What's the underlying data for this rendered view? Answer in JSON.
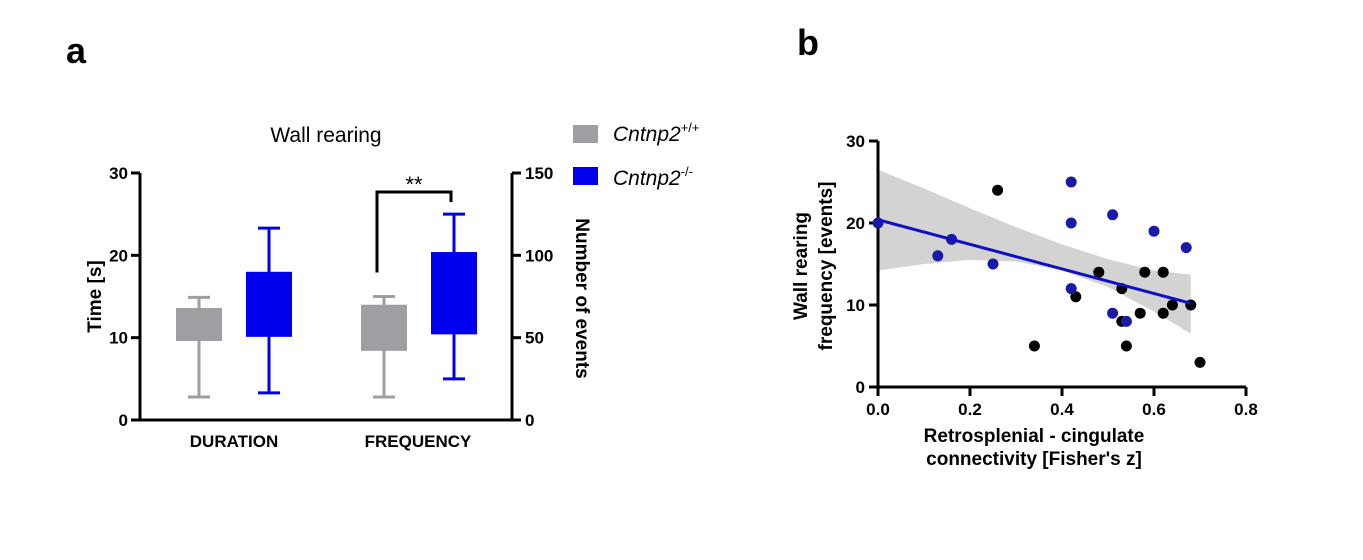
{
  "colors": {
    "wildtype": "#9e9ea3",
    "knockout": "#0000ee",
    "scatter_wildtype": "#000000",
    "scatter_knockout": "#1a1aa6",
    "fit_line": "#1010c0",
    "ci_band": "#d3d3d3",
    "axis": "#000000"
  },
  "panel_a": {
    "letter": "a",
    "legend": [
      {
        "gene": "Cntnp2",
        "sup": "+/+"
      },
      {
        "gene": "Cntnp2",
        "sup": "-/-"
      }
    ]
  },
  "panel_b": {
    "letter": "b"
  },
  "chart_data": [
    {
      "type": "box",
      "title": "Wall rearing",
      "categories": [
        "DURATION",
        "FREQUENCY"
      ],
      "ylabel": "Time [s]",
      "ylim": [
        0,
        30
      ],
      "yticks": [
        "0",
        "10",
        "20",
        "30"
      ],
      "y2label": "Number of events",
      "y2lim": [
        0,
        150
      ],
      "y2ticks": [
        "0",
        "50",
        "100",
        "150"
      ],
      "significance": {
        "label": "**",
        "between": [
          "Cntnp2+/+",
          "Cntnp2-/-"
        ],
        "category": "FREQUENCY"
      },
      "series": [
        {
          "name": "Cntnp2+/+",
          "boxes": [
            {
              "category": "DURATION",
              "axis": "left",
              "min": 2.8,
              "q1": 9.6,
              "median": 13.3,
              "q3": 13.6,
              "max": 14.9
            },
            {
              "category": "FREQUENCY",
              "axis": "right",
              "min": 14,
              "q1": 42,
              "median": 68,
              "q3": 70,
              "max": 75
            }
          ]
        },
        {
          "name": "Cntnp2-/-",
          "boxes": [
            {
              "category": "DURATION",
              "axis": "left",
              "min": 3.3,
              "q1": 10.1,
              "median": 17.5,
              "q3": 18.0,
              "max": 23.3
            },
            {
              "category": "FREQUENCY",
              "axis": "right",
              "min": 25,
              "q1": 52,
              "median": 100,
              "q3": 102,
              "max": 125
            }
          ]
        }
      ]
    },
    {
      "type": "scatter",
      "title": "",
      "xlabel": [
        "Retrosplenial - cingulate",
        "connectivity [Fisher's z]"
      ],
      "ylabel": [
        "Wall rearing",
        "frequency [events]"
      ],
      "xlim": [
        0,
        0.8
      ],
      "ylim": [
        0,
        30
      ],
      "xticks": [
        "0.0",
        "0.2",
        "0.4",
        "0.6",
        "0.8"
      ],
      "yticks": [
        "0",
        "10",
        "20",
        "30"
      ],
      "series": [
        {
          "name": "Cntnp2+/+",
          "points": [
            [
              0.26,
              24
            ],
            [
              0.34,
              5
            ],
            [
              0.43,
              11
            ],
            [
              0.48,
              14
            ],
            [
              0.53,
              12
            ],
            [
              0.53,
              8
            ],
            [
              0.54,
              5
            ],
            [
              0.57,
              9
            ],
            [
              0.58,
              14
            ],
            [
              0.62,
              9
            ],
            [
              0.62,
              14
            ],
            [
              0.64,
              10
            ],
            [
              0.68,
              10
            ],
            [
              0.7,
              3
            ]
          ]
        },
        {
          "name": "Cntnp2-/-",
          "points": [
            [
              0.0,
              20
            ],
            [
              0.13,
              16
            ],
            [
              0.16,
              18
            ],
            [
              0.25,
              15
            ],
            [
              0.42,
              25
            ],
            [
              0.42,
              20
            ],
            [
              0.42,
              12
            ],
            [
              0.51,
              21
            ],
            [
              0.51,
              9
            ],
            [
              0.54,
              8
            ],
            [
              0.6,
              19
            ],
            [
              0.67,
              17
            ]
          ]
        }
      ],
      "fit": {
        "x": [
          0.0,
          0.68
        ],
        "y": [
          20.4,
          10.2
        ]
      },
      "confidence_band": {
        "x": [
          0.0,
          0.1,
          0.2,
          0.3,
          0.4,
          0.5,
          0.6,
          0.68
        ],
        "upper": [
          26.5,
          24.2,
          21.8,
          19.5,
          17.4,
          15.6,
          14.2,
          13.7
        ],
        "lower": [
          14.2,
          15.0,
          15.5,
          15.3,
          14.2,
          12.2,
          9.2,
          6.5
        ]
      }
    }
  ]
}
